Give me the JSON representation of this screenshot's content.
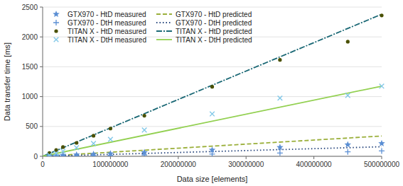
{
  "chart_data": {
    "type": "scatter",
    "xlabel": "Data size [elements]",
    "ylabel": "Data transfer time [ms]",
    "xlim": [
      0,
      500000000
    ],
    "ylim": [
      0,
      2500
    ],
    "xticks": [
      0,
      100000000,
      200000000,
      300000000,
      400000000,
      500000000
    ],
    "yticks": [
      0,
      500,
      1000,
      1500,
      2000,
      2500
    ],
    "grid": true,
    "legend": "upper left",
    "series": [
      {
        "name": "GTX970 - HtD measured",
        "type": "scatter",
        "marker": "star",
        "color": "#5B8FD4",
        "x": [
          10000000,
          20000000,
          30000000,
          50000000,
          75000000,
          100000000,
          150000000,
          250000000,
          350000000,
          450000000,
          500000000
        ],
        "values": [
          8,
          12,
          18,
          25,
          35,
          45,
          65,
          105,
          150,
          195,
          215
        ]
      },
      {
        "name": "GTX970 - DtH measured",
        "type": "scatter",
        "marker": "plus",
        "color": "#5B8FD4",
        "x": [
          10000000,
          20000000,
          30000000,
          50000000,
          75000000,
          100000000,
          150000000,
          250000000,
          350000000,
          450000000,
          500000000
        ],
        "values": [
          3,
          5,
          7,
          10,
          13,
          16,
          22,
          38,
          55,
          75,
          90
        ]
      },
      {
        "name": "TITAN X - HtD measured",
        "type": "scatter",
        "marker": "circle",
        "color": "#4A5000",
        "x": [
          10000000,
          20000000,
          30000000,
          50000000,
          75000000,
          100000000,
          150000000,
          250000000,
          350000000,
          450000000,
          500000000
        ],
        "values": [
          55,
          105,
          155,
          225,
          345,
          465,
          680,
          1165,
          1615,
          1920,
          2360
        ]
      },
      {
        "name": "TITAN X - DtH measured",
        "type": "scatter",
        "marker": "x",
        "color": "#82C8E8",
        "x": [
          10000000,
          20000000,
          30000000,
          50000000,
          75000000,
          100000000,
          150000000,
          250000000,
          350000000,
          450000000,
          500000000
        ],
        "values": [
          20,
          50,
          85,
          145,
          215,
          285,
          440,
          710,
          975,
          1020,
          1175
        ]
      },
      {
        "name": "GTX970 - HtD predicted",
        "type": "line",
        "line_style": "dashed",
        "color": "#9AAF3A",
        "x": [
          0,
          500000000
        ],
        "values": [
          0,
          340
        ]
      },
      {
        "name": "GTX970 - DtH predicted",
        "type": "line",
        "line_style": "dotted",
        "color": "#23427A",
        "x": [
          0,
          500000000
        ],
        "values": [
          0,
          160
        ]
      },
      {
        "name": "TITAN X - HtD predicted",
        "type": "line",
        "line_style": "dashdot",
        "color": "#1A6875",
        "x": [
          0,
          500000000
        ],
        "values": [
          0,
          2380
        ]
      },
      {
        "name": "TITAN X - DtH predicted",
        "type": "line",
        "line_style": "solid",
        "color": "#92D050",
        "x": [
          0,
          500000000
        ],
        "values": [
          0,
          1175
        ]
      }
    ]
  }
}
